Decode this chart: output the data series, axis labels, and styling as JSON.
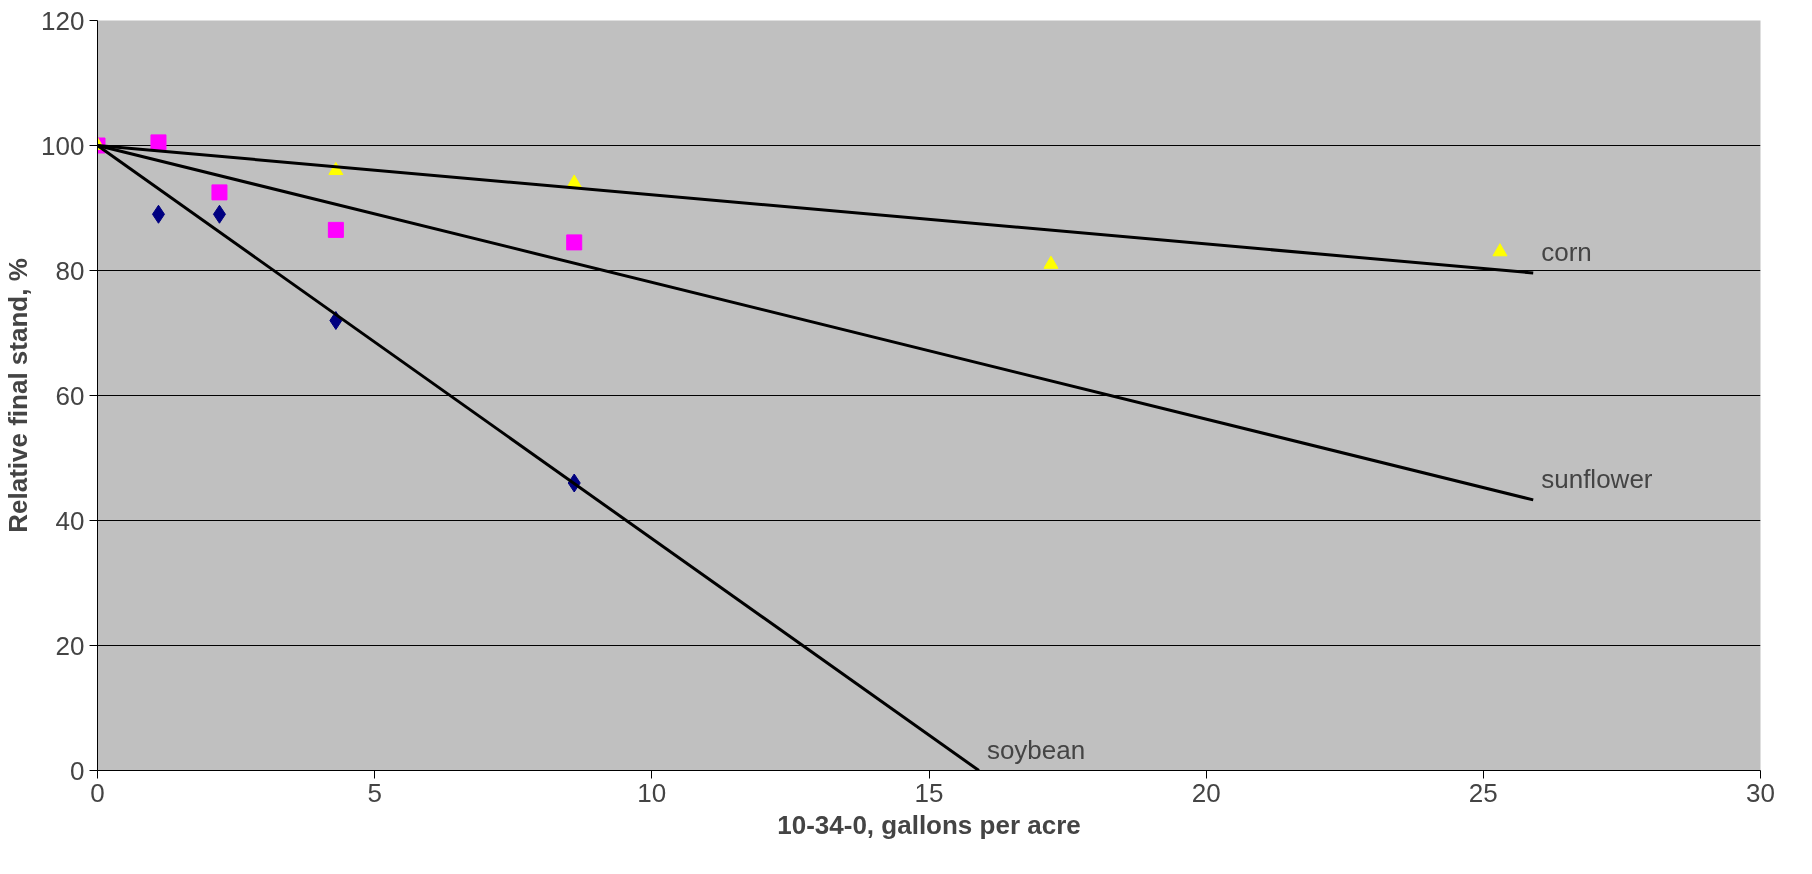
{
  "chart_data": {
    "type": "scatter",
    "xlabel": "10-34-0, gallons per acre",
    "ylabel": "Relative final stand, %",
    "xlim": [
      0,
      30
    ],
    "ylim": [
      0,
      120
    ],
    "xticks": [
      0,
      5,
      10,
      15,
      20,
      25,
      30
    ],
    "yticks": [
      0,
      20,
      40,
      60,
      80,
      100,
      120
    ],
    "grid": "y",
    "legend": false,
    "series": [
      {
        "marker": "diamond",
        "color": "#000080",
        "x": [
          1.1,
          2.2,
          4.3,
          8.6
        ],
        "values": [
          89,
          89,
          72,
          46
        ]
      },
      {
        "marker": "square",
        "color": "#ff00ff",
        "x": [
          0,
          1.1,
          2.2,
          4.3,
          8.6
        ],
        "values": [
          100,
          100.5,
          92.5,
          86.5,
          84.5
        ]
      },
      {
        "marker": "triangle",
        "color": "#ffff00",
        "x": [
          0,
          4.3,
          8.6,
          17.2,
          25.3
        ],
        "values": [
          100,
          96,
          94,
          81,
          83
        ]
      },
      {
        "type": "line",
        "name": "corn",
        "color": "#000000",
        "x": [
          0,
          25.9
        ],
        "values": [
          100,
          79.6
        ]
      },
      {
        "type": "line",
        "name": "sunflower",
        "color": "#000000",
        "x": [
          0,
          25.9
        ],
        "values": [
          100,
          43.3
        ]
      },
      {
        "type": "line",
        "name": "soybean",
        "color": "#000000",
        "x": [
          0,
          15.9
        ],
        "values": [
          100,
          0
        ]
      }
    ]
  }
}
